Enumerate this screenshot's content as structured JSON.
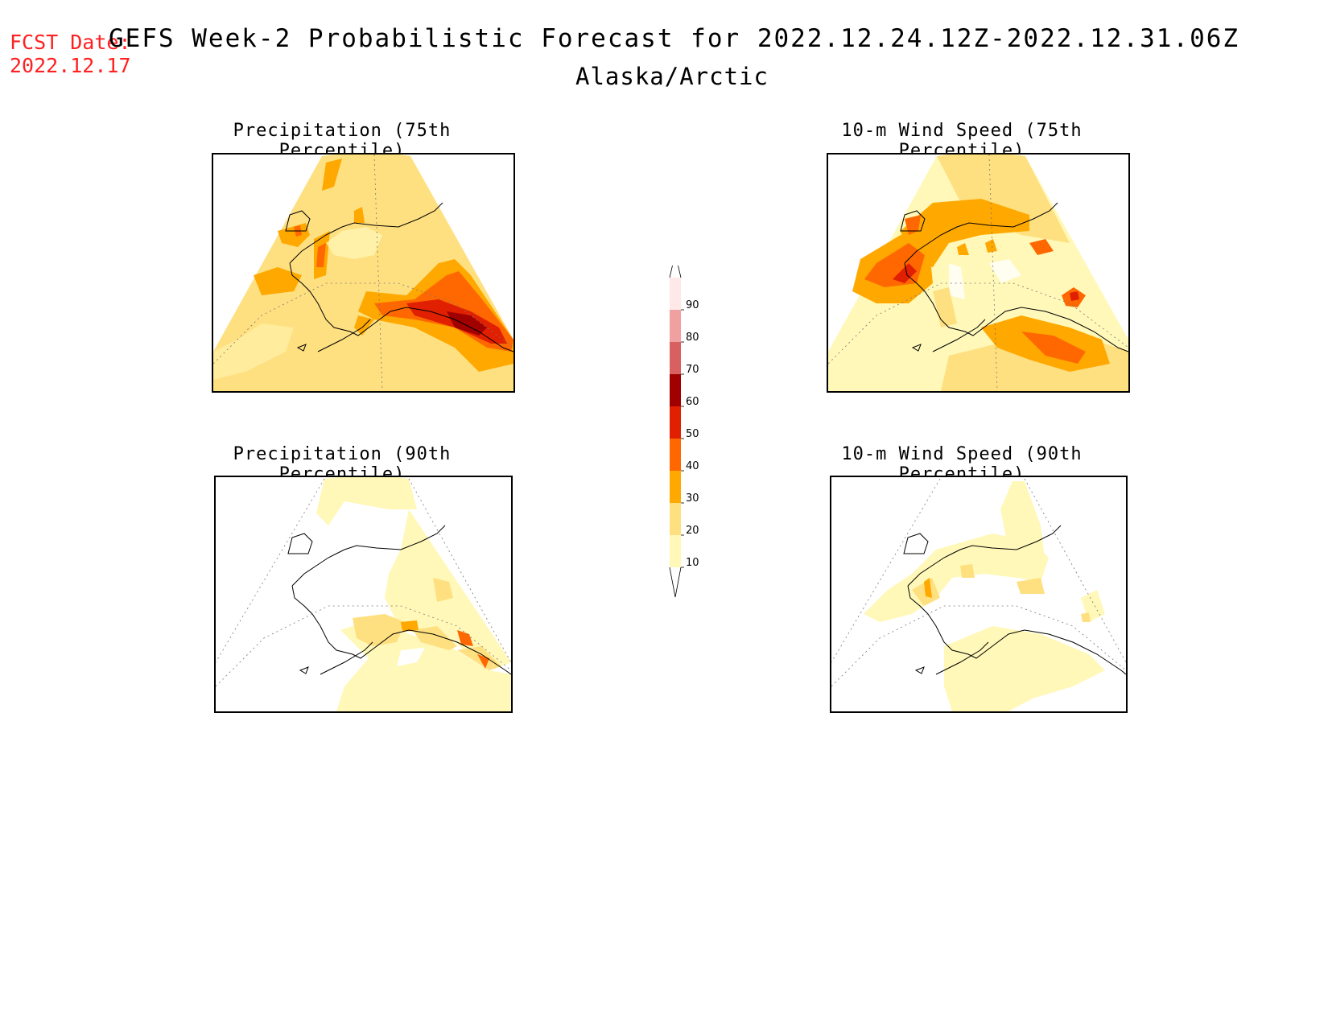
{
  "header": {
    "fcst_label": "FCST Date:",
    "fcst_date": "2022.12.17",
    "title": "GEFS Week-2 Probabilistic Forecast for 2022.12.24.12Z-2022.12.31.06Z",
    "region": "Alaska/Arctic"
  },
  "panels": [
    {
      "id": "precip75",
      "title": "Precipitation (75th Percentile)"
    },
    {
      "id": "wind75",
      "title": "10-m Wind Speed (75th Percentile)"
    },
    {
      "id": "precip90",
      "title": "Precipitation (90th Percentile)"
    },
    {
      "id": "wind90",
      "title": "10-m Wind Speed (90th Percentile)"
    }
  ],
  "legend": {
    "levels": [
      "10",
      "20",
      "30",
      "40",
      "50",
      "60",
      "70",
      "80",
      "90"
    ],
    "colors": [
      "#fff8b8",
      "#ffe080",
      "#ffa800",
      "#ff6800",
      "#e02000",
      "#a00000",
      "#d86060",
      "#f0a0a0",
      "#ffe8e8"
    ]
  }
}
